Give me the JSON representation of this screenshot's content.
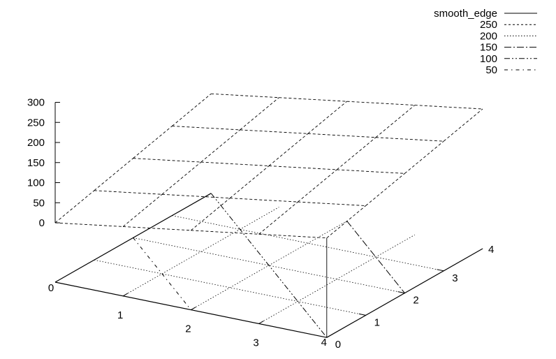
{
  "chart_data": {
    "type": "surface3d",
    "title": "",
    "grid": true,
    "legend_position": "top-right",
    "x": [
      0,
      1,
      2,
      3,
      4
    ],
    "y": [
      0,
      1,
      2,
      3,
      4
    ],
    "xticks": [
      "0",
      "1",
      "2",
      "3",
      "4"
    ],
    "yticks": [
      "0",
      "1",
      "2",
      "3",
      "4"
    ],
    "zticks": [
      "0",
      "50",
      "100",
      "150",
      "200",
      "250",
      "300"
    ],
    "zlim": [
      0,
      300
    ],
    "surface": {
      "name": "smooth_edge",
      "z": [
        [
          0,
          25,
          50,
          75,
          100
        ],
        [
          25,
          50,
          75,
          100,
          125
        ],
        [
          50,
          75,
          100,
          125,
          150
        ],
        [
          75,
          100,
          125,
          150,
          175
        ],
        [
          100,
          125,
          150,
          175,
          200
        ]
      ]
    },
    "contour_levels": [
      {
        "label": "250",
        "value": 250,
        "dash": "3,3"
      },
      {
        "label": "200",
        "value": 200,
        "dash": "1.5,2.5"
      },
      {
        "label": "150",
        "value": 150,
        "dash": "10,3,2,3"
      },
      {
        "label": "100",
        "value": 100,
        "dash": "8,3,2,3,2,3"
      },
      {
        "label": "50",
        "value": 50,
        "dash": "5,5,1.5,5"
      }
    ],
    "legend": [
      {
        "label": "smooth_edge",
        "dash": "none"
      },
      {
        "label": "250",
        "dash": "3,3"
      },
      {
        "label": "200",
        "dash": "1.5,2.5"
      },
      {
        "label": "150",
        "dash": "10,3,2,3"
      },
      {
        "label": "100",
        "dash": "8,3,2,3,2,3"
      },
      {
        "label": "50",
        "dash": "5,5,1.5,5"
      }
    ],
    "colors": {
      "line": "#000000",
      "background": "#ffffff"
    }
  }
}
